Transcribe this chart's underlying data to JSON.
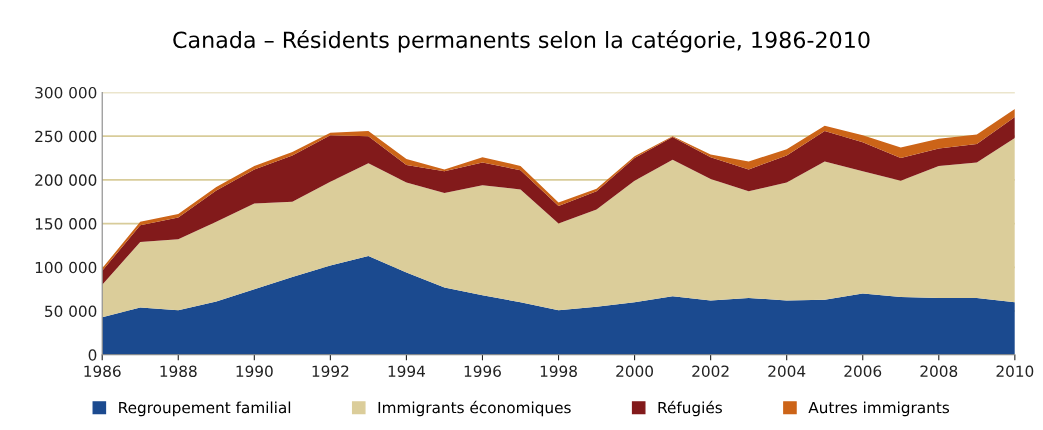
{
  "chart_data": {
    "type": "area",
    "stacked": true,
    "title": "Canada – Résidents permanents selon la catégorie, 1986-2010",
    "x": [
      1986,
      1987,
      1988,
      1989,
      1990,
      1991,
      1992,
      1993,
      1994,
      1995,
      1996,
      1997,
      1998,
      1999,
      2000,
      2001,
      2002,
      2003,
      2004,
      2005,
      2006,
      2007,
      2008,
      2009,
      2010
    ],
    "series": [
      {
        "name": "Regroupement familial",
        "color": "#1b4a8f",
        "values": [
          43000,
          54000,
          51000,
          61000,
          75000,
          89000,
          102000,
          113000,
          94000,
          77000,
          68000,
          60000,
          51000,
          55000,
          60000,
          67000,
          62000,
          65000,
          62000,
          63000,
          70000,
          66000,
          65000,
          65000,
          60000
        ]
      },
      {
        "name": "Immigrants économiques",
        "color": "#dbcd9a",
        "values": [
          37000,
          75000,
          81000,
          91000,
          98000,
          86000,
          96000,
          106000,
          103000,
          108000,
          126000,
          129000,
          99000,
          111000,
          139000,
          156000,
          139000,
          122000,
          135000,
          158000,
          140000,
          133000,
          151000,
          155000,
          188000
        ]
      },
      {
        "name": "Réfugiés",
        "color": "#821a1b",
        "values": [
          16000,
          19000,
          25000,
          36000,
          39000,
          53000,
          53000,
          31000,
          20000,
          25000,
          26000,
          22000,
          20000,
          21000,
          26000,
          26000,
          25000,
          25000,
          31000,
          35000,
          33000,
          26000,
          20000,
          21000,
          24000
        ]
      },
      {
        "name": "Autres immigrants",
        "color": "#cc6418",
        "values": [
          3000,
          4000,
          4000,
          4000,
          4000,
          4000,
          3000,
          6000,
          7000,
          2000,
          6000,
          5000,
          4000,
          3000,
          2000,
          1000,
          3000,
          9000,
          7000,
          6000,
          8000,
          12000,
          11000,
          11000,
          9000
        ]
      }
    ],
    "xlim": [
      1986,
      2010
    ],
    "xticks": [
      1986,
      1988,
      1990,
      1992,
      1994,
      1996,
      1998,
      2000,
      2002,
      2004,
      2006,
      2008,
      2010
    ],
    "ylim": [
      0,
      300000
    ],
    "yticks": [
      {
        "value": 0,
        "label": "0"
      },
      {
        "value": 50000,
        "label": "50 000"
      },
      {
        "value": 100000,
        "label": "100 000"
      },
      {
        "value": 150000,
        "label": "150 000"
      },
      {
        "value": 200000,
        "label": "200 000"
      },
      {
        "value": 250000,
        "label": "250 000"
      },
      {
        "value": 300000,
        "label": "300 000"
      }
    ],
    "grid": "y",
    "legend": "bottom"
  }
}
